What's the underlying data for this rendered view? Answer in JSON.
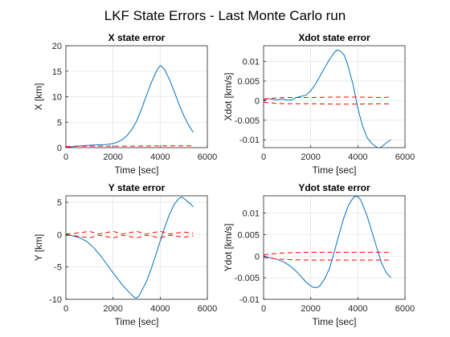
{
  "figure": {
    "title": "LKF State Errors - Last Monte Carlo run"
  },
  "colors": {
    "error": "#0072BD",
    "bound": "#FF0000",
    "axis": "#262626",
    "grid": "#dcdcdc"
  },
  "chart_data": [
    {
      "type": "line",
      "title": "X state error",
      "xlabel": "Time [sec]",
      "ylabel": "X [km]",
      "xlim": [
        0,
        6000
      ],
      "ylim": [
        0,
        20
      ],
      "xticks": [
        0,
        2000,
        4000,
        6000
      ],
      "yticks": [
        0,
        5,
        10,
        15,
        20
      ],
      "tick_labels_x": [
        "0",
        "2000",
        "4000",
        "6000"
      ],
      "tick_labels_y": [
        "0",
        "5",
        "10",
        "15",
        "20"
      ],
      "grid": true,
      "series": [
        {
          "role": "error",
          "style": "solid",
          "x": [
            0,
            200,
            500,
            800,
            1100,
            1400,
            1700,
            2000,
            2200,
            2400,
            2600,
            2800,
            3000,
            3200,
            3400,
            3600,
            3800,
            3900,
            4000,
            4100,
            4200,
            4400,
            4600,
            4800,
            5000,
            5200,
            5400
          ],
          "y": [
            0,
            0.15,
            0.3,
            0.4,
            0.5,
            0.55,
            0.6,
            0.8,
            1.1,
            1.6,
            2.4,
            3.6,
            5.2,
            7.5,
            10,
            12.5,
            14.6,
            15.5,
            16.1,
            15.8,
            15.2,
            13.3,
            11,
            8.5,
            6.3,
            4.5,
            3
          ]
        },
        {
          "role": "upper bound",
          "style": "dashed",
          "x": [
            0,
            500,
            1000,
            2000,
            3000,
            4000,
            5000,
            5400
          ],
          "y": [
            0.2,
            0.3,
            0.3,
            0.3,
            0.3,
            0.35,
            0.35,
            0.35
          ]
        },
        {
          "role": "lower bound",
          "style": "dashed",
          "x": [
            0,
            500,
            1000,
            2000,
            3000,
            4000,
            5000,
            5400
          ],
          "y": [
            -0.2,
            -0.3,
            -0.3,
            -0.3,
            -0.3,
            -0.35,
            -0.35,
            -0.35
          ]
        }
      ]
    },
    {
      "type": "line",
      "title": "Xdot state error",
      "xlabel": "Time [sec]",
      "ylabel": "Xdot [km/s]",
      "xlim": [
        0,
        6000
      ],
      "ylim": [
        -0.012,
        0.014
      ],
      "xticks": [
        0,
        2000,
        4000,
        6000
      ],
      "yticks": [
        -0.01,
        -0.005,
        0,
        0.005,
        0.01
      ],
      "tick_labels_x": [
        "0",
        "2000",
        "4000",
        "6000"
      ],
      "tick_labels_y": [
        "-0.01",
        "-0.005",
        "0",
        "0.005",
        "0.01"
      ],
      "grid": true,
      "series": [
        {
          "role": "error",
          "style": "solid",
          "x": [
            0,
            200,
            400,
            600,
            800,
            1000,
            1200,
            1400,
            1600,
            1800,
            2000,
            2200,
            2400,
            2600,
            2800,
            3000,
            3100,
            3200,
            3300,
            3400,
            3500,
            3600,
            3800,
            4000,
            4200,
            4400,
            4600,
            4800,
            4900,
            5000,
            5100,
            5200,
            5400
          ],
          "y": [
            0.0001,
            0.0005,
            0.0003,
            0.0002,
            0.0004,
            0.0001,
            0.0002,
            0.0008,
            0.0011,
            0.0014,
            0.0025,
            0.0042,
            0.0063,
            0.0085,
            0.0105,
            0.0123,
            0.0129,
            0.0128,
            0.0124,
            0.0118,
            0.0104,
            0.0085,
            0.004,
            -0.002,
            -0.0065,
            -0.0095,
            -0.011,
            -0.0119,
            -0.0121,
            -0.0118,
            -0.0113,
            -0.0108,
            -0.01
          ]
        },
        {
          "role": "upper bound",
          "style": "dashed",
          "x": [
            0,
            500,
            1000,
            2000,
            3000,
            4000,
            5000,
            5400
          ],
          "y": [
            0.0004,
            0.0007,
            0.0008,
            0.0008,
            0.0009,
            0.0009,
            0.0008,
            0.0009
          ]
        },
        {
          "role": "lower bound",
          "style": "dashed",
          "x": [
            0,
            500,
            1000,
            2000,
            3000,
            4000,
            5000,
            5400
          ],
          "y": [
            -0.0004,
            -0.0007,
            -0.0008,
            -0.0008,
            -0.0009,
            -0.0009,
            -0.0008,
            -0.0009
          ]
        }
      ]
    },
    {
      "type": "line",
      "title": "Y state error",
      "xlabel": "Time [sec]",
      "ylabel": "Y [km]",
      "xlim": [
        0,
        6000
      ],
      "ylim": [
        -10,
        6
      ],
      "xticks": [
        0,
        2000,
        4000,
        6000
      ],
      "yticks": [
        -10,
        -5,
        0,
        5
      ],
      "tick_labels_x": [
        "0",
        "2000",
        "4000",
        "6000"
      ],
      "tick_labels_y": [
        "-10",
        "-5",
        "0",
        "5"
      ],
      "grid": true,
      "series": [
        {
          "role": "error",
          "style": "solid",
          "x": [
            0,
            300,
            600,
            900,
            1200,
            1500,
            1800,
            2100,
            2400,
            2700,
            2900,
            3000,
            3100,
            3200,
            3400,
            3600,
            3800,
            4000,
            4200,
            4400,
            4600,
            4800,
            4900,
            5000,
            5100,
            5200,
            5300,
            5400
          ],
          "y": [
            0,
            -0.2,
            -0.5,
            -1.1,
            -2.1,
            -3.4,
            -4.9,
            -6.4,
            -7.8,
            -9,
            -9.7,
            -9.8,
            -9.5,
            -8.8,
            -7.4,
            -5.5,
            -3.3,
            -1,
            1.2,
            3.2,
            4.7,
            5.6,
            5.8,
            5.6,
            5.3,
            5,
            4.7,
            4.3
          ]
        },
        {
          "role": "upper bound",
          "style": "dashed",
          "x": [
            0,
            400,
            1000,
            1400,
            2000,
            2400,
            3000,
            3400,
            4000,
            4400,
            5000,
            5400
          ],
          "y": [
            0.1,
            0.2,
            0.5,
            0.1,
            0.5,
            0.1,
            0.5,
            0.1,
            0.5,
            0.1,
            0.4,
            0.2
          ]
        },
        {
          "role": "lower bound",
          "style": "dashed",
          "x": [
            0,
            400,
            1000,
            1400,
            2000,
            2400,
            3000,
            3400,
            4000,
            4400,
            5000,
            5400
          ],
          "y": [
            -0.1,
            -0.2,
            -0.5,
            -0.1,
            -0.5,
            -0.1,
            -0.5,
            -0.1,
            -0.5,
            -0.1,
            -0.4,
            -0.2
          ]
        }
      ]
    },
    {
      "type": "line",
      "title": "Ydot state error",
      "xlabel": "Time [sec]",
      "ylabel": "Ydot [km/s]",
      "xlim": [
        0,
        6000
      ],
      "ylim": [
        -0.01,
        0.014
      ],
      "xticks": [
        0,
        2000,
        4000,
        6000
      ],
      "yticks": [
        -0.01,
        -0.005,
        0,
        0.005,
        0.01
      ],
      "tick_labels_x": [
        "0",
        "2000",
        "4000",
        "6000"
      ],
      "tick_labels_y": [
        "-0.01",
        "-0.005",
        "0",
        "0.005",
        "0.01"
      ],
      "grid": true,
      "series": [
        {
          "role": "error",
          "style": "solid",
          "x": [
            0,
            200,
            400,
            600,
            800,
            1000,
            1200,
            1400,
            1600,
            1800,
            2000,
            2100,
            2200,
            2300,
            2400,
            2600,
            2800,
            3000,
            3200,
            3400,
            3600,
            3800,
            3900,
            4000,
            4100,
            4200,
            4400,
            4600,
            4800,
            5000,
            5200,
            5400
          ],
          "y": [
            0,
            -0.0003,
            -0.0005,
            -0.0008,
            -0.0012,
            -0.0018,
            -0.0026,
            -0.0036,
            -0.0048,
            -0.006,
            -0.0069,
            -0.0072,
            -0.0073,
            -0.0072,
            -0.0068,
            -0.0052,
            -0.0028,
            0.001,
            0.005,
            0.0088,
            0.0118,
            0.0135,
            0.0139,
            0.0138,
            0.0132,
            0.012,
            0.0092,
            0.0056,
            0.002,
            -0.0015,
            -0.0038,
            -0.005
          ]
        },
        {
          "role": "upper bound",
          "style": "dashed",
          "x": [
            0,
            500,
            1000,
            2000,
            3000,
            4000,
            5000,
            5400
          ],
          "y": [
            0.0003,
            0.0006,
            0.0008,
            0.0009,
            0.0009,
            0.0009,
            0.0009,
            0.0009
          ]
        },
        {
          "role": "lower bound",
          "style": "dashed",
          "x": [
            0,
            500,
            1000,
            2000,
            3000,
            4000,
            5000,
            5400
          ],
          "y": [
            -0.0003,
            -0.0006,
            -0.0008,
            -0.0009,
            -0.0009,
            -0.0009,
            -0.0009,
            -0.0009
          ]
        }
      ]
    }
  ]
}
